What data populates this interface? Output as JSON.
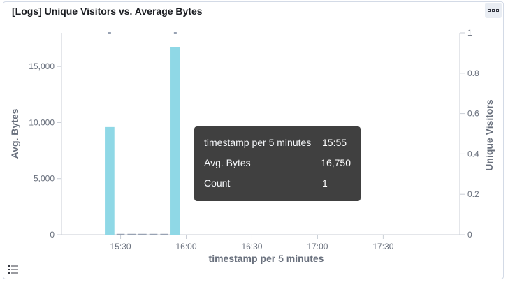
{
  "panel": {
    "title": "[Logs] Unique Visitors vs. Average Bytes",
    "options_icon": "options-dots-icon",
    "legend_icon": "legend-list-icon"
  },
  "chart_data": {
    "type": "bar",
    "x_type": "time",
    "xlabel": "timestamp per 5 minutes",
    "x_ticks": [
      "15:30",
      "16:00",
      "16:30",
      "17:00",
      "17:30"
    ],
    "x_tick_minutes": [
      930,
      960,
      990,
      1020,
      1050
    ],
    "xlim_minutes": [
      903,
      1085
    ],
    "bar_width_minutes": 5,
    "left_axis": {
      "label": "Avg. Bytes",
      "ylim": [
        0,
        18000
      ],
      "ticks": [
        0,
        5000,
        10000,
        15000
      ],
      "tick_labels": [
        "0",
        "5,000",
        "10,000",
        "15,000"
      ]
    },
    "right_axis": {
      "label": "Unique Visitors",
      "ylim": [
        0,
        1
      ],
      "ticks": [
        0,
        0.2,
        0.4,
        0.6,
        0.8,
        1
      ],
      "tick_labels": [
        "0",
        "0.2",
        "0.4",
        "0.6",
        "0.8",
        "1"
      ]
    },
    "series": [
      {
        "name": "Avg. Bytes",
        "axis": "left",
        "color": "#8fd8e6",
        "x_minutes": [
          925,
          930,
          935,
          940,
          945,
          950,
          955
        ],
        "values": [
          9600,
          0,
          0,
          0,
          0,
          0,
          16750
        ]
      },
      {
        "name": "Unique Visitors",
        "axis": "right",
        "color": "#98a2b3",
        "x_minutes": [
          925,
          955
        ],
        "values": [
          1,
          1
        ]
      }
    ],
    "grid": false
  },
  "tooltip": {
    "rows": [
      {
        "label": "timestamp per 5 minutes",
        "value": "15:55"
      },
      {
        "label": "Avg. Bytes",
        "value": "16,750"
      },
      {
        "label": "Count",
        "value": "1"
      }
    ]
  }
}
